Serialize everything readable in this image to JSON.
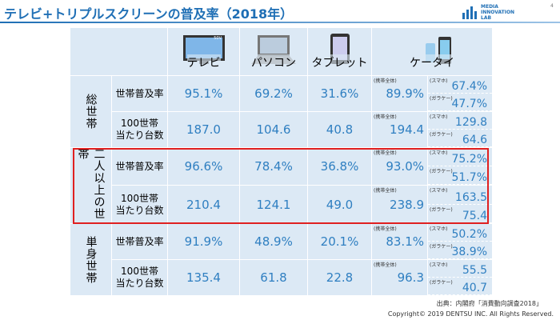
{
  "header": {
    "title": "テレビ+トリプルスクリーンの普及率（2018年）",
    "logo_lines": [
      "MEDIA",
      "INNOVATION",
      "LAB"
    ],
    "page_number": "4"
  },
  "table": {
    "columns": [
      "テレビ",
      "パソコン",
      "タブレット",
      "ケータイ"
    ],
    "tv_icon_text": "50V",
    "groups": [
      {
        "label": "総世帯",
        "rows": [
          {
            "label": [
              "世帯普及率"
            ],
            "values": [
              "95.1%",
              "69.2%",
              "31.6%"
            ],
            "total_label": "(携帯全体)",
            "total": "89.9%",
            "smartphone_label": "(スマホ)",
            "smartphone": "67.4%",
            "feature_label": "(ガラケー)",
            "feature": "47.7%"
          },
          {
            "label": [
              "100世帯",
              "当たり台数"
            ],
            "values": [
              "187.0",
              "104.6",
              "40.8"
            ],
            "total_label": "(携帯全体)",
            "total": "194.4",
            "smartphone_label": "(スマホ)",
            "smartphone": "129.8",
            "feature_label": "(ガラケー)",
            "feature": "64.6"
          }
        ]
      },
      {
        "label": "二人以上の世帯",
        "rows": [
          {
            "label": [
              "世帯普及率"
            ],
            "values": [
              "96.6%",
              "78.4%",
              "36.8%"
            ],
            "total_label": "(携帯全体)",
            "total": "93.0%",
            "smartphone_label": "(スマホ)",
            "smartphone": "75.2%",
            "feature_label": "(ガラケー)",
            "feature": "51.7%"
          },
          {
            "label": [
              "100世帯",
              "当たり台数"
            ],
            "values": [
              "210.4",
              "124.1",
              "49.0"
            ],
            "total_label": "(携帯全体)",
            "total": "238.9",
            "smartphone_label": "(スマホ)",
            "smartphone": "163.5",
            "feature_label": "(ガラケー)",
            "feature": "75.4"
          }
        ]
      },
      {
        "label": "単身世帯",
        "rows": [
          {
            "label": [
              "世帯普及率"
            ],
            "values": [
              "91.9%",
              "48.9%",
              "20.1%"
            ],
            "total_label": "(携帯全体)",
            "total": "83.1%",
            "smartphone_label": "(スマホ)",
            "smartphone": "50.2%",
            "feature_label": "(ガラケー)",
            "feature": "38.9%"
          },
          {
            "label": [
              "100世帯",
              "当たり台数"
            ],
            "values": [
              "135.4",
              "61.8",
              "22.8"
            ],
            "total_label": "(携帯全体)",
            "total": "96.3",
            "smartphone_label": "(スマホ)",
            "smartphone": "55.5",
            "feature_label": "(ガラケー)",
            "feature": "40.7"
          }
        ]
      }
    ]
  },
  "footer": {
    "source": "出典：内閣府「消費動向調査2018」",
    "copyright": "Copyright© 2019 DENTSU INC. All Rights Reserved."
  }
}
